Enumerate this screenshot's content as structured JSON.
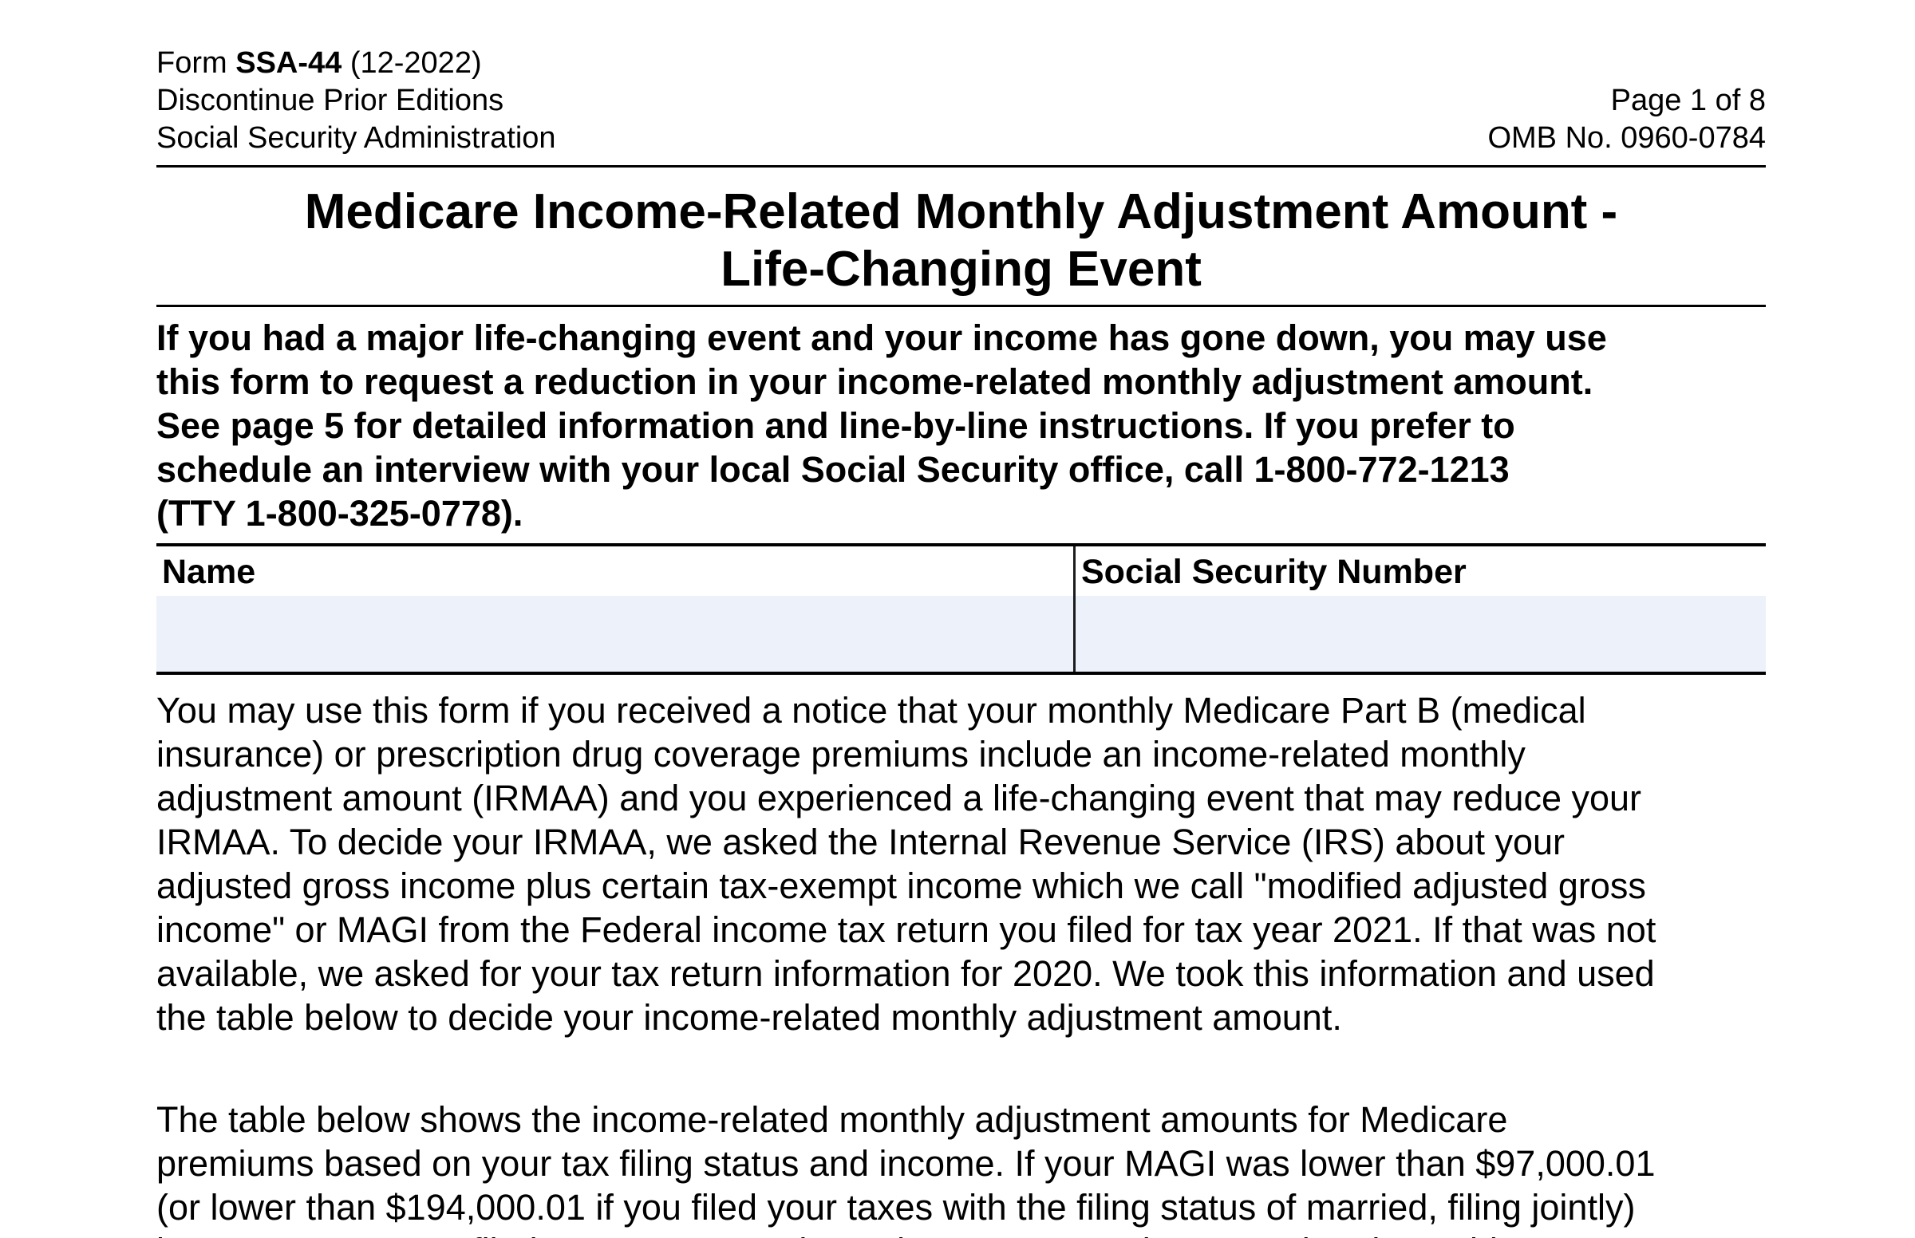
{
  "header": {
    "form_prefix": "Form ",
    "form_number": "SSA-44",
    "form_edition": " (12-2022)",
    "line2": "Discontinue Prior Editions",
    "line3": "Social Security Administration",
    "page_info": "Page 1 of 8",
    "omb": "OMB No. 0960-0784"
  },
  "title": {
    "line1": "Medicare Income-Related Monthly Adjustment Amount -",
    "line2": "Life-Changing Event"
  },
  "intro_bold": "If you had a major life-changing event and your income has gone down, you may use\nthis form to request a reduction in your income-related monthly adjustment amount.\nSee page 5 for detailed information and line-by-line instructions. If you prefer to\nschedule an interview with your local Social Security office, call 1-800-772-1213\n(TTY 1-800-325-0778).",
  "fields": {
    "name_label": "Name",
    "ssn_label": "Social Security Number",
    "name_value": "",
    "ssn_value": "",
    "field_bg_color": "#EDF1FA"
  },
  "paragraph1": "You may use this form if you received a notice that your monthly Medicare Part B (medical\ninsurance) or prescription drug coverage premiums include an income-related monthly\nadjustment amount (IRMAA) and you experienced a life-changing event that may reduce your\nIRMAA. To decide your IRMAA, we asked the Internal Revenue Service (IRS) about your\nadjusted gross income plus certain tax-exempt income which we call \"modified adjusted gross\nincome\" or MAGI from the Federal income tax return you filed for tax year 2021. If that was not\navailable, we asked for your tax return information for 2020. We took this information and used\nthe table below to decide your income-related monthly adjustment amount.",
  "paragraph2": "The table below shows the income-related monthly adjustment amounts for Medicare\npremiums based on your tax filing status and income. If your MAGI was lower than $97,000.01\n(or lower than $194,000.01 if you filed your taxes with the filing status of married, filing jointly)\nin your most recent filed tax return, you do not have to pay an income-related monthly"
}
